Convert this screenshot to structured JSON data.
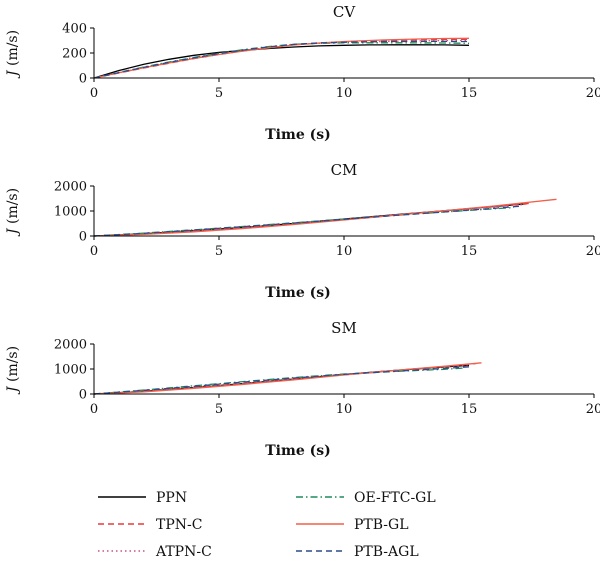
{
  "chart_data": [
    {
      "type": "line",
      "title": "CV",
      "xlabel": "Time (s)",
      "ylabel": "J (m/s)",
      "xlim": [
        0,
        20
      ],
      "ylim": [
        0,
        400
      ],
      "xticks": [
        0,
        5,
        10,
        15,
        20
      ],
      "yticks": [
        0,
        200,
        400
      ],
      "series": [
        {
          "key": "ppn",
          "x": [
            0,
            1,
            2,
            3,
            4,
            5,
            6,
            7,
            8,
            9,
            10,
            11,
            12,
            13,
            14,
            15
          ],
          "y": [
            0,
            60,
            110,
            150,
            182,
            205,
            222,
            236,
            248,
            257,
            262,
            265,
            266,
            266,
            265,
            262
          ]
        },
        {
          "key": "tpnc",
          "x": [
            0,
            1,
            2,
            3,
            4,
            5,
            6,
            7,
            8,
            9,
            10,
            11,
            12,
            13,
            14,
            15
          ],
          "y": [
            0,
            40,
            80,
            118,
            155,
            188,
            218,
            245,
            268,
            282,
            290,
            296,
            301,
            305,
            308,
            310
          ]
        },
        {
          "key": "atpnc",
          "x": [
            0,
            1,
            2,
            3,
            4,
            5,
            6,
            7,
            8,
            9,
            10,
            11,
            12,
            13,
            14,
            15
          ],
          "y": [
            0,
            42,
            84,
            122,
            158,
            190,
            220,
            246,
            266,
            278,
            285,
            290,
            294,
            297,
            299,
            300
          ]
        },
        {
          "key": "oeftcgl",
          "x": [
            0,
            1,
            2,
            3,
            4,
            5,
            6,
            7,
            8,
            9,
            10,
            11,
            12,
            13,
            14,
            15
          ],
          "y": [
            0,
            45,
            88,
            128,
            165,
            198,
            228,
            252,
            270,
            278,
            281,
            282,
            282,
            281,
            280,
            278
          ]
        },
        {
          "key": "ptbgl",
          "x": [
            0,
            1,
            2,
            3,
            4,
            5,
            6,
            7,
            8,
            9,
            10,
            11,
            12,
            13,
            14,
            15
          ],
          "y": [
            0,
            42,
            82,
            120,
            156,
            188,
            216,
            242,
            264,
            280,
            292,
            300,
            307,
            312,
            316,
            318
          ]
        },
        {
          "key": "ptbagl",
          "x": [
            0,
            1,
            2,
            3,
            4,
            5,
            6,
            7,
            8,
            9,
            10,
            11,
            12,
            13,
            14,
            15
          ],
          "y": [
            0,
            44,
            86,
            125,
            162,
            195,
            224,
            250,
            270,
            280,
            286,
            290,
            292,
            293,
            293,
            292
          ]
        }
      ]
    },
    {
      "type": "line",
      "title": "CM",
      "xlabel": "Time (s)",
      "ylabel": "J (m/s)",
      "xlim": [
        0,
        20
      ],
      "ylim": [
        0,
        2000
      ],
      "xticks": [
        0,
        5,
        10,
        15,
        20
      ],
      "yticks": [
        0,
        1000,
        2000
      ],
      "series": [
        {
          "key": "ppn",
          "x": [
            0,
            2,
            4,
            6,
            8,
            10,
            12,
            14,
            16,
            17.3
          ],
          "y": [
            0,
            90,
            215,
            345,
            505,
            680,
            850,
            1010,
            1180,
            1290
          ]
        },
        {
          "key": "tpnc",
          "x": [
            0,
            2,
            4,
            6,
            8,
            10,
            12,
            14,
            16,
            17.5
          ],
          "y": [
            0,
            80,
            200,
            340,
            495,
            660,
            840,
            1010,
            1180,
            1310
          ]
        },
        {
          "key": "atpnc",
          "x": [
            0,
            2,
            4,
            6,
            8,
            10,
            12,
            14,
            16,
            17.2
          ],
          "y": [
            0,
            85,
            205,
            345,
            500,
            670,
            840,
            1000,
            1160,
            1260
          ]
        },
        {
          "key": "oeftcgl",
          "x": [
            0,
            2,
            4,
            6,
            8,
            10,
            12,
            14,
            16,
            16.8
          ],
          "y": [
            0,
            115,
            250,
            385,
            530,
            680,
            820,
            960,
            1090,
            1140
          ]
        },
        {
          "key": "ptbgl",
          "x": [
            0,
            2,
            4,
            6,
            8,
            10,
            12,
            14,
            16,
            18.5
          ],
          "y": [
            0,
            70,
            170,
            300,
            460,
            640,
            830,
            1010,
            1200,
            1470
          ]
        },
        {
          "key": "ptbagl",
          "x": [
            0,
            2,
            4,
            6,
            8,
            10,
            12,
            14,
            16,
            17.0
          ],
          "y": [
            0,
            110,
            240,
            375,
            520,
            670,
            820,
            960,
            1110,
            1190
          ]
        }
      ]
    },
    {
      "type": "line",
      "title": "SM",
      "xlabel": "Time (s)",
      "ylabel": "J (m/s)",
      "xlim": [
        0,
        20
      ],
      "ylim": [
        0,
        2000
      ],
      "xticks": [
        0,
        5,
        10,
        15,
        20
      ],
      "yticks": [
        0,
        1000,
        2000
      ],
      "series": [
        {
          "key": "ppn",
          "x": [
            0,
            2,
            4,
            6,
            8,
            10,
            12,
            14,
            15.0
          ],
          "y": [
            0,
            110,
            260,
            420,
            600,
            780,
            940,
            1080,
            1150
          ]
        },
        {
          "key": "tpnc",
          "x": [
            0,
            2,
            4,
            6,
            8,
            10,
            12,
            14,
            15.3
          ],
          "y": [
            0,
            100,
            250,
            410,
            590,
            770,
            940,
            1100,
            1220
          ]
        },
        {
          "key": "atpnc",
          "x": [
            0,
            2,
            4,
            6,
            8,
            10,
            12,
            14,
            15.0
          ],
          "y": [
            0,
            105,
            255,
            420,
            600,
            780,
            945,
            1090,
            1170
          ]
        },
        {
          "key": "oeftcgl",
          "x": [
            0,
            2,
            4,
            6,
            8,
            10,
            12,
            14,
            14.8
          ],
          "y": [
            0,
            160,
            330,
            500,
            660,
            800,
            900,
            990,
            1040
          ]
        },
        {
          "key": "ptbgl",
          "x": [
            0,
            2,
            4,
            6,
            8,
            10,
            12,
            14,
            15.5
          ],
          "y": [
            0,
            90,
            230,
            390,
            570,
            760,
            940,
            1110,
            1250
          ]
        },
        {
          "key": "ptbagl",
          "x": [
            0,
            2,
            4,
            6,
            8,
            10,
            12,
            14,
            15.0
          ],
          "y": [
            0,
            150,
            310,
            480,
            640,
            790,
            910,
            1020,
            1090
          ]
        }
      ]
    }
  ],
  "legend": {
    "placement": "bottom",
    "items": [
      {
        "key": "ppn",
        "label": "PPN",
        "color": "#000000",
        "dash": "solid"
      },
      {
        "key": "tpnc",
        "label": "TPN-C",
        "color": "#e8383d",
        "dash": "dashed"
      },
      {
        "key": "atpnc",
        "label": "ATPN-C",
        "color": "#c8508a",
        "dash": "dotted"
      },
      {
        "key": "oeftcgl",
        "label": "OE-FTC-GL",
        "color": "#1e8a5a",
        "dash": "dashdot"
      },
      {
        "key": "ptbgl",
        "label": "PTB-GL",
        "color": "#f0604a",
        "dash": "solid"
      },
      {
        "key": "ptbagl",
        "label": "PTB-AGL",
        "color": "#2c4a8c",
        "dash": "dashed"
      }
    ]
  }
}
